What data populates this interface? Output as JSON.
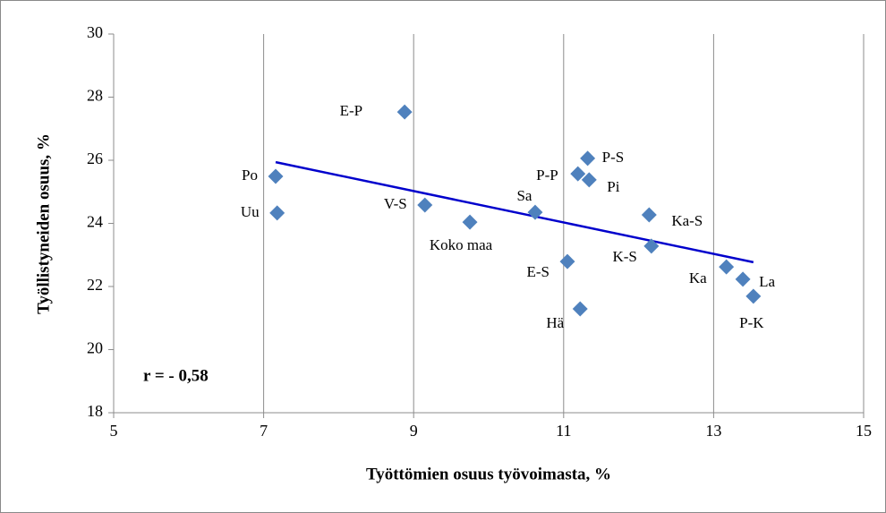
{
  "chart_data": {
    "type": "scatter",
    "x_label": "Työttömien osuus työvoimasta, %",
    "y_label": "Työllistyneiden osuus, %",
    "annotation": "r = - 0,58",
    "labels": [
      "E-P",
      "Po",
      "Uu",
      "V-S",
      "Koko maa",
      "Sa",
      "P-P",
      "P-S",
      "Pi",
      "Ka-S",
      "K-S",
      "E-S",
      "Hä",
      "Ka",
      "La",
      "P-K"
    ],
    "x": [
      8.88,
      7.16,
      7.18,
      9.15,
      9.75,
      10.62,
      11.19,
      11.32,
      11.34,
      12.14,
      12.17,
      11.05,
      11.22,
      13.17,
      13.39,
      13.53
    ],
    "y": [
      27.53,
      25.49,
      24.33,
      24.58,
      24.04,
      24.35,
      25.57,
      26.06,
      25.38,
      24.27,
      23.28,
      22.79,
      21.29,
      22.62,
      22.23,
      21.69
    ],
    "color": "#4f81bd",
    "trend": {
      "color": "#0000cc",
      "x": [
        7.16,
        13.53
      ],
      "y": [
        25.94,
        22.77
      ]
    },
    "xlim": [
      5,
      15
    ],
    "xticks": [
      5,
      7,
      9,
      11,
      13,
      15
    ],
    "ylim": [
      18,
      30
    ],
    "yticks": [
      18,
      20,
      22,
      24,
      26,
      28,
      30
    ],
    "grid": "x"
  }
}
